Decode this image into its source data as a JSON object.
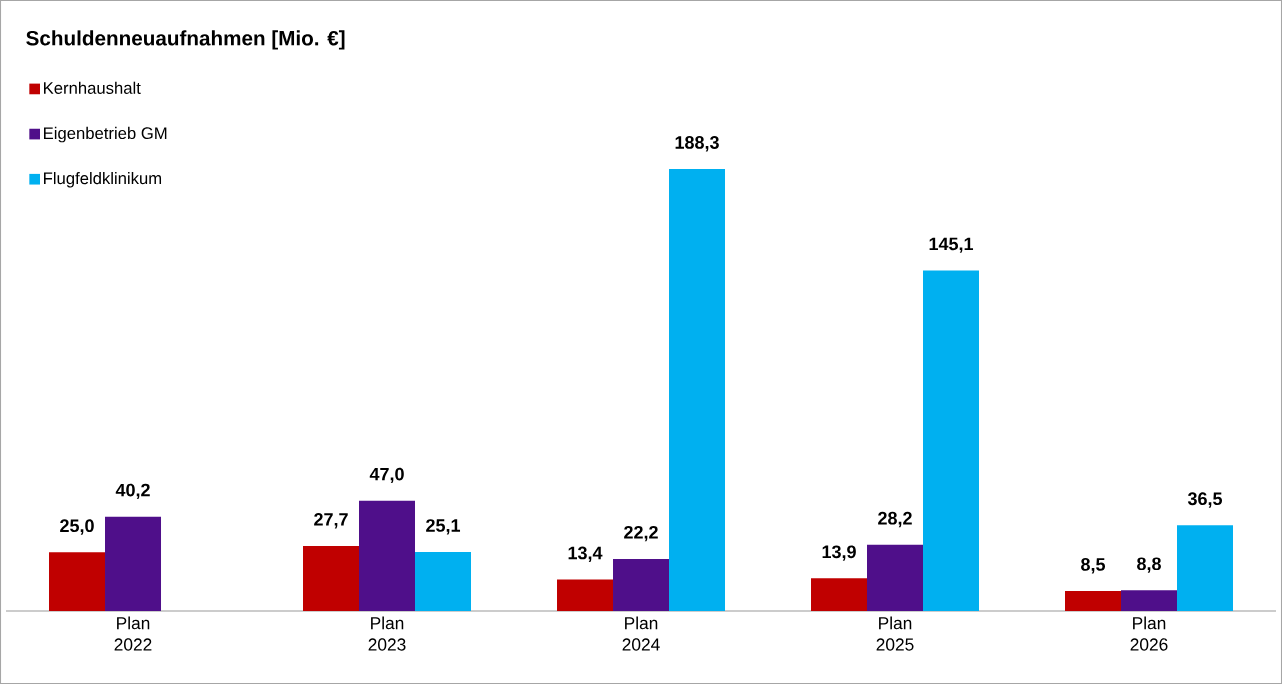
{
  "chart_data": {
    "type": "bar",
    "title": "Schuldenneuaufnahmen [Mio. €]",
    "categories": [
      "Plan 2022",
      "Plan 2023",
      "Plan 2024",
      "Plan 2025",
      "Plan 2026"
    ],
    "series": [
      {
        "name": "Kernhaushalt",
        "color": "#c00000",
        "values": [
          25.0,
          27.7,
          13.4,
          13.9,
          8.5
        ],
        "value_labels": [
          "25,0",
          "27,7",
          "13,4",
          "13,9",
          "8,5"
        ]
      },
      {
        "name": "Eigenbetrieb GM",
        "color": "#4f0f8a",
        "values": [
          40.2,
          47.0,
          22.2,
          28.2,
          8.8
        ],
        "value_labels": [
          "40,2",
          "47,0",
          "22,2",
          "28,2",
          "8,8"
        ]
      },
      {
        "name": "Flugfeldklinikum",
        "color": "#00b0f0",
        "values": [
          null,
          25.1,
          188.3,
          145.1,
          36.5
        ],
        "value_labels": [
          null,
          "25,1",
          "188,3",
          "145,1",
          "36,5"
        ]
      }
    ],
    "legend": "top left"
  }
}
